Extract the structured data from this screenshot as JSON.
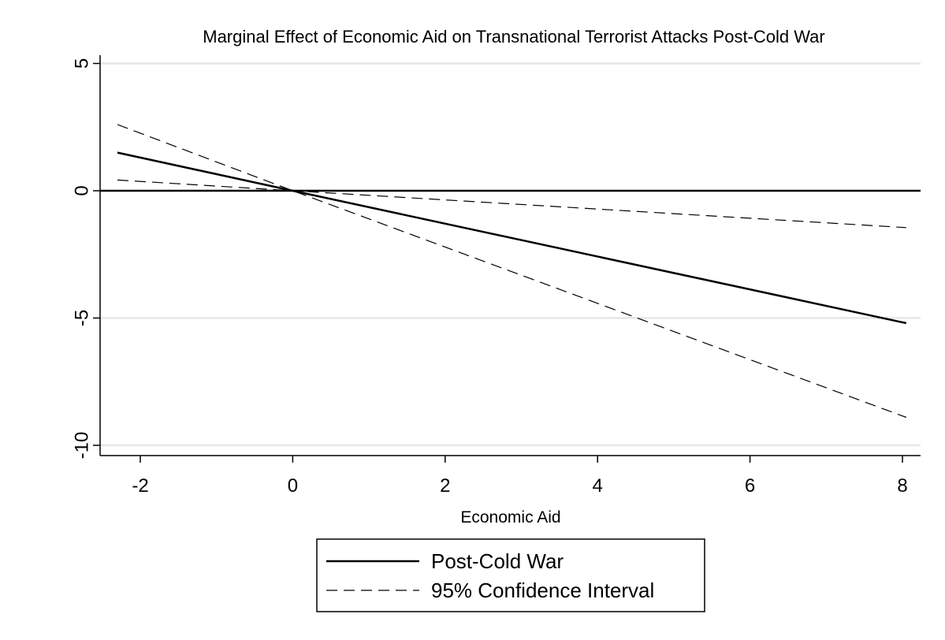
{
  "chart_data": {
    "type": "line",
    "title": "Marginal Effect of Economic Aid on Transnational Terrorist Attacks Post-Cold War",
    "xlabel": "Economic Aid",
    "ylabel": "",
    "xlim": [
      -2.5,
      8.2
    ],
    "ylim": [
      -10.5,
      5.5
    ],
    "x_ticks": [
      -2,
      0,
      2,
      4,
      6,
      8
    ],
    "x_tick_labels": [
      "-2",
      "0",
      "2",
      "4",
      "6",
      "8"
    ],
    "y_ticks": [
      5,
      0,
      -5,
      -10
    ],
    "y_tick_labels": [
      "5",
      "0",
      "-5",
      "-10"
    ],
    "grid": true,
    "reference_line_y": 0,
    "legend_position": "bottom-center",
    "series": [
      {
        "name": "Post-Cold War",
        "style": "solid",
        "x": [
          -2.3,
          0,
          8.05
        ],
        "y": [
          1.5,
          0,
          -5.2
        ]
      },
      {
        "name": "95% Confidence Interval",
        "style": "dashed",
        "x": [
          -2.3,
          0,
          8.05
        ],
        "y": [
          2.6,
          0,
          -8.9
        ]
      },
      {
        "name": "",
        "style": "dashed",
        "x": [
          -2.3,
          0,
          8.05
        ],
        "y": [
          0.42,
          0,
          -1.45
        ]
      }
    ],
    "legend": [
      {
        "label": "Post-Cold War",
        "style": "solid"
      },
      {
        "label": "95% Confidence Interval",
        "style": "dashed"
      }
    ]
  }
}
